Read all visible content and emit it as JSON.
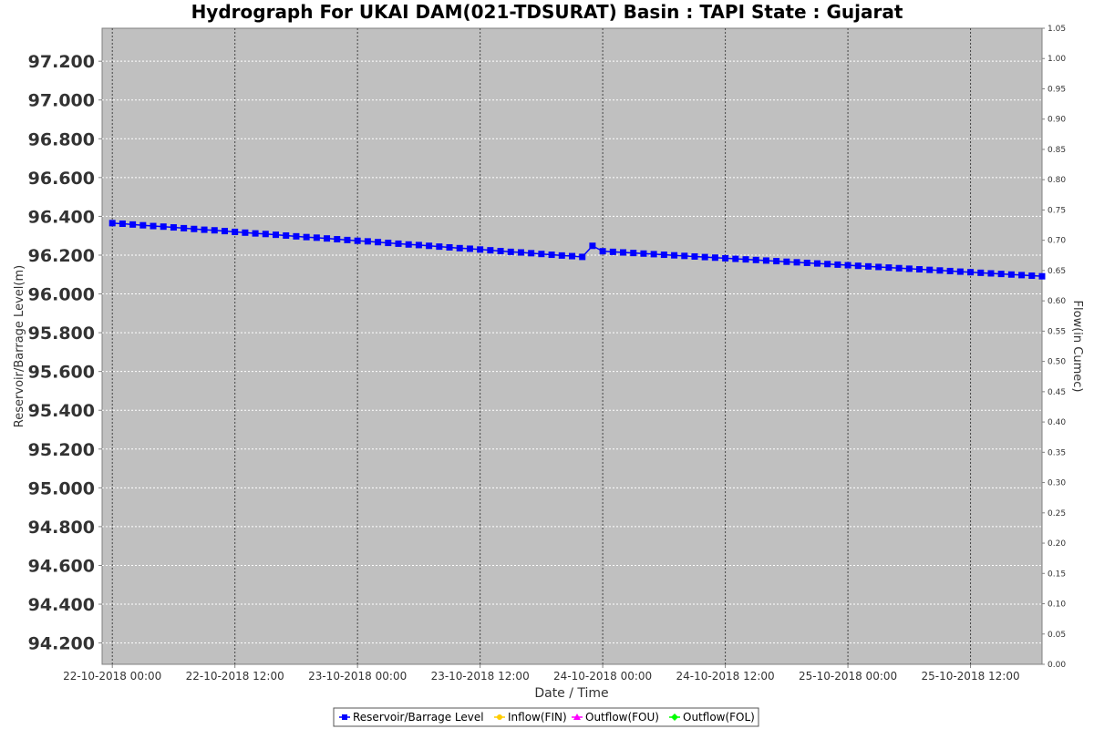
{
  "chart_data": {
    "type": "line",
    "title": "Hydrograph For UKAI DAM(021-TDSURAT) Basin : TAPI State : Gujarat",
    "xlabel": "Date / Time",
    "ylabel": "Reservoir/Barrage Level(m)",
    "ylabel_right": "Flow(in Cumec)",
    "x_ticks": [
      "22-10-2018 00:00",
      "22-10-2018 12:00",
      "23-10-2018 00:00",
      "23-10-2018 12:00",
      "24-10-2018 00:00",
      "24-10-2018 12:00",
      "25-10-2018 00:00",
      "25-10-2018 12:00"
    ],
    "x_range": [
      "21-10-2018 23:00",
      "25-10-2018 19:00"
    ],
    "y_ticks": [
      "94.200",
      "94.400",
      "94.600",
      "94.800",
      "95.000",
      "95.200",
      "95.400",
      "95.600",
      "95.800",
      "96.000",
      "96.200",
      "96.400",
      "96.600",
      "96.800",
      "97.000",
      "97.200"
    ],
    "ylim": [
      94.09,
      97.37
    ],
    "y_right_ticks": [
      "0.00",
      "0.05",
      "0.10",
      "0.15",
      "0.20",
      "0.25",
      "0.30",
      "0.35",
      "0.40",
      "0.45",
      "0.50",
      "0.55",
      "0.60",
      "0.65",
      "0.70",
      "0.75",
      "0.80",
      "0.85",
      "0.90",
      "0.95",
      "1.00",
      "1.05"
    ],
    "ylim_right": [
      0.0,
      1.05
    ],
    "grid": true,
    "legend_position": "bottom-center",
    "series": [
      {
        "name": "Reservoir/Barrage Level",
        "color": "#0000ff",
        "marker": "square",
        "points": [
          [
            "22-10-2018 00:00",
            96.365
          ],
          [
            "22-10-2018 01:00",
            96.362
          ],
          [
            "22-10-2018 02:00",
            96.358
          ],
          [
            "22-10-2018 03:00",
            96.354
          ],
          [
            "22-10-2018 04:00",
            96.35
          ],
          [
            "22-10-2018 05:00",
            96.347
          ],
          [
            "22-10-2018 06:00",
            96.343
          ],
          [
            "22-10-2018 07:00",
            96.339
          ],
          [
            "22-10-2018 08:00",
            96.335
          ],
          [
            "22-10-2018 09:00",
            96.331
          ],
          [
            "22-10-2018 10:00",
            96.328
          ],
          [
            "22-10-2018 11:00",
            96.324
          ],
          [
            "22-10-2018 12:00",
            96.32
          ],
          [
            "22-10-2018 13:00",
            96.316
          ],
          [
            "22-10-2018 14:00",
            96.312
          ],
          [
            "22-10-2018 15:00",
            96.309
          ],
          [
            "22-10-2018 16:00",
            96.305
          ],
          [
            "22-10-2018 17:00",
            96.301
          ],
          [
            "22-10-2018 18:00",
            96.297
          ],
          [
            "22-10-2018 19:00",
            96.293
          ],
          [
            "22-10-2018 20:00",
            96.29
          ],
          [
            "22-10-2018 21:00",
            96.286
          ],
          [
            "22-10-2018 22:00",
            96.282
          ],
          [
            "22-10-2018 23:00",
            96.278
          ],
          [
            "23-10-2018 00:00",
            96.274
          ],
          [
            "23-10-2018 01:00",
            96.271
          ],
          [
            "23-10-2018 02:00",
            96.267
          ],
          [
            "23-10-2018 03:00",
            96.263
          ],
          [
            "23-10-2018 04:00",
            96.259
          ],
          [
            "23-10-2018 05:00",
            96.255
          ],
          [
            "23-10-2018 06:00",
            96.252
          ],
          [
            "23-10-2018 07:00",
            96.248
          ],
          [
            "23-10-2018 08:00",
            96.244
          ],
          [
            "23-10-2018 09:00",
            96.24
          ],
          [
            "23-10-2018 10:00",
            96.236
          ],
          [
            "23-10-2018 11:00",
            96.233
          ],
          [
            "23-10-2018 12:00",
            96.229
          ],
          [
            "23-10-2018 13:00",
            96.225
          ],
          [
            "23-10-2018 14:00",
            96.221
          ],
          [
            "23-10-2018 15:00",
            96.217
          ],
          [
            "23-10-2018 16:00",
            96.214
          ],
          [
            "23-10-2018 17:00",
            96.21
          ],
          [
            "23-10-2018 18:00",
            96.206
          ],
          [
            "23-10-2018 19:00",
            96.202
          ],
          [
            "23-10-2018 20:00",
            96.198
          ],
          [
            "23-10-2018 21:00",
            96.195
          ],
          [
            "23-10-2018 22:00",
            96.191
          ],
          [
            "23-10-2018 23:00",
            96.248
          ],
          [
            "24-10-2018 00:00",
            96.22
          ],
          [
            "24-10-2018 01:00",
            96.217
          ],
          [
            "24-10-2018 02:00",
            96.214
          ],
          [
            "24-10-2018 03:00",
            96.211
          ],
          [
            "24-10-2018 04:00",
            96.208
          ],
          [
            "24-10-2018 05:00",
            96.205
          ],
          [
            "24-10-2018 06:00",
            96.202
          ],
          [
            "24-10-2018 07:00",
            96.199
          ],
          [
            "24-10-2018 08:00",
            96.196
          ],
          [
            "24-10-2018 09:00",
            96.193
          ],
          [
            "24-10-2018 10:00",
            96.19
          ],
          [
            "24-10-2018 11:00",
            96.187
          ],
          [
            "24-10-2018 12:00",
            96.184
          ],
          [
            "24-10-2018 13:00",
            96.181
          ],
          [
            "24-10-2018 14:00",
            96.178
          ],
          [
            "24-10-2018 15:00",
            96.175
          ],
          [
            "24-10-2018 16:00",
            96.172
          ],
          [
            "24-10-2018 17:00",
            96.169
          ],
          [
            "24-10-2018 18:00",
            96.166
          ],
          [
            "24-10-2018 19:00",
            96.163
          ],
          [
            "24-10-2018 20:00",
            96.16
          ],
          [
            "24-10-2018 21:00",
            96.157
          ],
          [
            "24-10-2018 22:00",
            96.154
          ],
          [
            "24-10-2018 23:00",
            96.151
          ],
          [
            "25-10-2018 00:00",
            96.148
          ],
          [
            "25-10-2018 01:00",
            96.145
          ],
          [
            "25-10-2018 02:00",
            96.142
          ],
          [
            "25-10-2018 03:00",
            96.139
          ],
          [
            "25-10-2018 04:00",
            96.136
          ],
          [
            "25-10-2018 05:00",
            96.133
          ],
          [
            "25-10-2018 06:00",
            96.13
          ],
          [
            "25-10-2018 07:00",
            96.127
          ],
          [
            "25-10-2018 08:00",
            96.124
          ],
          [
            "25-10-2018 09:00",
            96.121
          ],
          [
            "25-10-2018 10:00",
            96.118
          ],
          [
            "25-10-2018 11:00",
            96.115
          ],
          [
            "25-10-2018 12:00",
            96.112
          ],
          [
            "25-10-2018 13:00",
            96.109
          ],
          [
            "25-10-2018 14:00",
            96.106
          ],
          [
            "25-10-2018 15:00",
            96.103
          ],
          [
            "25-10-2018 16:00",
            96.1
          ],
          [
            "25-10-2018 17:00",
            96.097
          ],
          [
            "25-10-2018 18:00",
            96.094
          ],
          [
            "25-10-2018 19:00",
            96.091
          ]
        ]
      },
      {
        "name": "Inflow(FIN)",
        "color": "#ffcc00",
        "marker": "circle",
        "points": []
      },
      {
        "name": "Outflow(FOU)",
        "color": "#ff00ff",
        "marker": "triangle",
        "points": []
      },
      {
        "name": "Outflow(FOL)",
        "color": "#00ff00",
        "marker": "diamond",
        "points": []
      }
    ]
  }
}
